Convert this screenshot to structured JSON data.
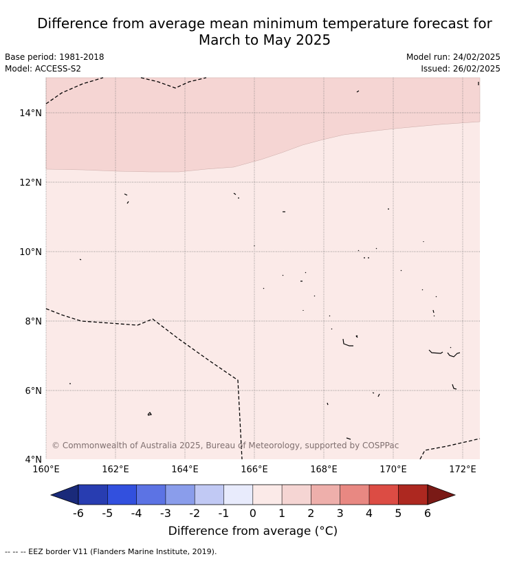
{
  "title": {
    "line1": "Difference from average mean minimum temperature forecast for",
    "line2": "March to May 2025"
  },
  "meta": {
    "base_period": "Base period: 1981-2018",
    "model": "Model: ACCESS-S2",
    "model_run": "Model run: 24/02/2025",
    "issued": "Issued: 26/02/2025"
  },
  "map": {
    "x_ticks": [
      "160°E",
      "162°E",
      "164°E",
      "166°E",
      "168°E",
      "170°E",
      "172°E"
    ],
    "y_ticks": [
      "14°N",
      "12°N",
      "10°N",
      "8°N",
      "6°N",
      "4°N"
    ],
    "credit": "© Commonwealth of Australia 2025, Bureau of Meteorology, supported by COSPPac",
    "fill_colors": {
      "anomaly_1_to_2": "#f5d5d3",
      "anomaly_0_to_1": "#fbeae8"
    }
  },
  "colorbar": {
    "title": "Difference from average (°C)",
    "tick_labels": [
      "-6",
      "-5",
      "-4",
      "-3",
      "-2",
      "-1",
      "0",
      "1",
      "2",
      "3",
      "4",
      "5",
      "6"
    ],
    "colors": [
      "#1a2a7a",
      "#283db1",
      "#3250de",
      "#5c73e4",
      "#8a9deb",
      "#c1c9f4",
      "#e8ebfc",
      "#fbeae8",
      "#f5d5d3",
      "#eeafab",
      "#e88882",
      "#dc4c44",
      "#ad2820",
      "#7a1a16"
    ]
  },
  "footnote": "--  --  -- EEZ border V11 (Flanders Marine Institute, 2019)."
}
